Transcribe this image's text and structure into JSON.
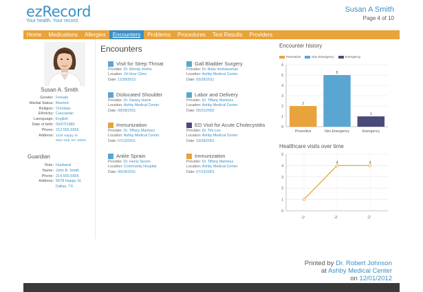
{
  "app": {
    "logo": "ezRecord",
    "tagline": "Your health. Your record."
  },
  "header": {
    "patient_name": "Susan A Smith",
    "page": "Page 4 of 10"
  },
  "nav": [
    "Home",
    "Medications",
    "Allergies",
    "Encounters",
    "Problems",
    "Procedures",
    "Test Results",
    "Providers"
  ],
  "nav_active": "Encounters",
  "patient": {
    "name": "Susan A. Smith",
    "fields": [
      {
        "label": "Gender:",
        "value": "Female"
      },
      {
        "label": "Martial Status:",
        "value": "Married"
      },
      {
        "label": "Religion:",
        "value": "Christian"
      },
      {
        "label": "Ethnicity:",
        "value": "Caucasian"
      },
      {
        "label": "Lannguage:",
        "value": "English"
      },
      {
        "label": "Date of birth:",
        "value": "03/07/1980"
      },
      {
        "label": "Phone:",
        "value": "212.555.5555"
      },
      {
        "label": "Address:",
        "value": "1234 Happy St"
      },
      {
        "label": "",
        "value": "New York, NY 10001"
      }
    ]
  },
  "guardian": {
    "title": "Guardian",
    "fields": [
      {
        "label": "Role:",
        "value": "Husband"
      },
      {
        "label": "Name:",
        "value": "John B. Smith"
      },
      {
        "label": "Phone:",
        "value": "214.555.5555"
      },
      {
        "label": "Address:",
        "value": "5678 Happy St"
      },
      {
        "label": "",
        "value": "Dallas, TX"
      }
    ]
  },
  "encounters": {
    "title": "Encounters",
    "labels": {
      "provider": "Provider:",
      "location": "Location:",
      "date": "Date:"
    },
    "items": [
      {
        "title": "Visit for Strep Throat",
        "color": "#5aa6d2",
        "provider": "Dr. Wendy Helms",
        "location": "24 Hour Clinic",
        "date": "11/28/2012"
      },
      {
        "title": "Gall Bladder Surgery",
        "color": "#5aa6d2",
        "provider": "Dr. Balia Venktaraman",
        "location": "Ashby Medical Center",
        "date": "03/28/2011"
      },
      {
        "title": "Dislocated Shoulder",
        "color": "#5aa6d2",
        "provider": "Dr. Sanjay Hamir",
        "location": "Ashby Medical Center",
        "date": "08/28/2011"
      },
      {
        "title": "Labor and Delivery",
        "color": "#5aa6d2",
        "provider": "Dr. Tiffany Martinez",
        "location": "Ashby Medical Center",
        "date": "05/21/2002"
      },
      {
        "title": "Immunization",
        "color": "#e8a33a",
        "provider": "Dr. Tiffany Martinez",
        "location": "Ashby Medical Center",
        "date": "07/13/2011"
      },
      {
        "title": "ED Visit for Acute Cholecystitis",
        "color": "#4a4a7a",
        "provider": "Dr. Tim Lee",
        "location": "Ashby Medical Center",
        "date": "10/28/2001"
      },
      {
        "title": "Ankle Sprain",
        "color": "#5aa6d2",
        "provider": "Dr. Henry Seven",
        "location": "Community Hospital",
        "date": "06/28/2011"
      },
      {
        "title": "Immunization",
        "color": "#e8a33a",
        "provider": "Dr. Tiffany Martinez",
        "location": "Ashby Medical Center",
        "date": "07/13/2001"
      }
    ]
  },
  "chart_data": [
    {
      "type": "bar",
      "title": "Encounter history",
      "categories": [
        "Preventive",
        "Non Emergency",
        "Emergency"
      ],
      "values": [
        2,
        5,
        1
      ],
      "colors": [
        "#e8a33a",
        "#5aa6d2",
        "#4a4a7a"
      ],
      "legend": [
        "Preventive",
        "Non Emergency",
        "Emergency"
      ],
      "ylim": [
        0,
        6
      ],
      "yticks": [
        "0",
        "1",
        "2",
        "3",
        "4",
        "5",
        "6"
      ],
      "grid": true
    },
    {
      "type": "line",
      "title": "Healthcare visits over time",
      "x_labels": [
        "01",
        "02",
        "03"
      ],
      "values": [
        1,
        4,
        4
      ],
      "ylim": [
        0,
        5
      ],
      "yticks": [
        "0",
        "1",
        "2",
        "3",
        "4",
        "5"
      ],
      "point_labels": [
        "",
        "4",
        "4"
      ],
      "color": "#e8a33a",
      "grid": true
    }
  ],
  "footer": {
    "printed_by_label": "Printed by",
    "printed_by": "Dr. Robert Johnson",
    "at_label": "at",
    "at": "Ashby Medical Center",
    "on_label": "on",
    "on": "12/01/2012"
  }
}
